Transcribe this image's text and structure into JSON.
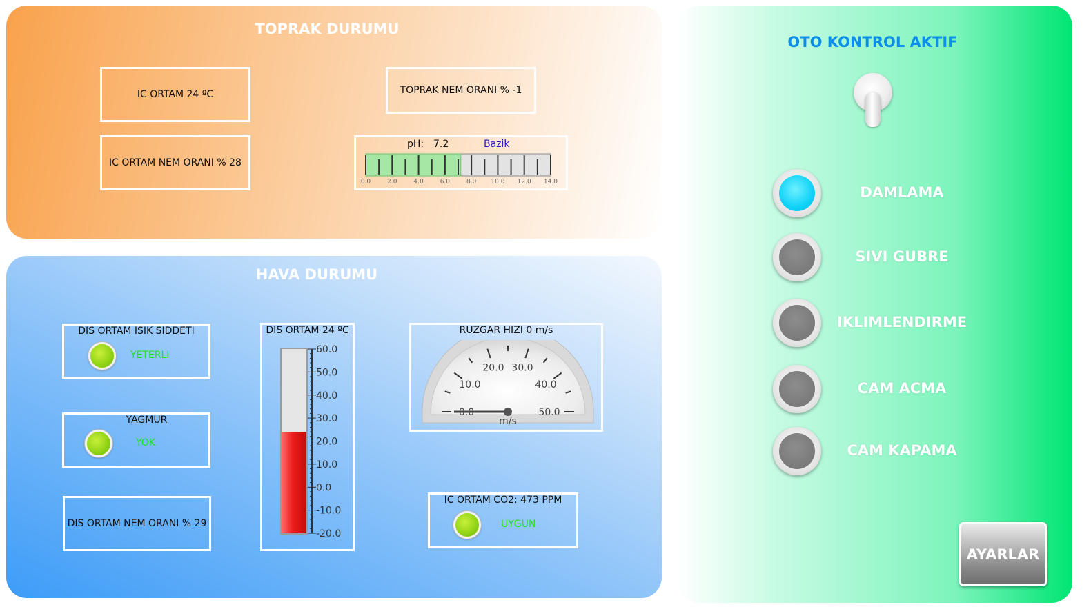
{
  "soil": {
    "title": "TOPRAK DURUMU",
    "indoor_temp": "IC ORTAM 24 ºC",
    "indoor_humidity": "IC ORTAM NEM ORANI % 28",
    "soil_moisture": "TOPRAK NEM ORANI % -1",
    "ph_label": "pH:",
    "ph_value": "7.2",
    "ph_status": "Bazik",
    "ph_scale": {
      "min": 0,
      "max": 14,
      "value": 7.2,
      "ticks": [
        "0.0",
        "2.0",
        "4.0",
        "6.0",
        "8.0",
        "10.0",
        "12.0",
        "14.0"
      ]
    }
  },
  "air": {
    "title": "HAVA DURUMU",
    "light_title": "DIS ORTAM ISIK SIDDETI",
    "light_status": "YETERLI",
    "rain_title": "YAGMUR",
    "rain_status": "YOK",
    "outdoor_humidity": "DIS ORTAM NEM ORANI % 29",
    "thermo": {
      "title": "DIS ORTAM 24 ºC",
      "min": -20,
      "max": 60,
      "value": 24,
      "ticks": [
        "60.0",
        "50.0",
        "40.0",
        "30.0",
        "20.0",
        "10.0",
        "0.0",
        "-10.0",
        "-20.0"
      ]
    },
    "wind": {
      "title": "RUZGAR HIZI 0 m/s",
      "min": 0,
      "max": 50,
      "value": 0,
      "unit": "m/s",
      "ticks": [
        "0.0",
        "10.0",
        "20.0",
        "30.0",
        "40.0",
        "50.0"
      ]
    },
    "co2_title": "IC ORTAM CO2: 473 PPM",
    "co2_status": "UYGUN"
  },
  "control": {
    "title": "OTO KONTROL AKTIF",
    "items": [
      {
        "label": "DAMLAMA",
        "active": true
      },
      {
        "label": "SIVI GUBRE",
        "active": false
      },
      {
        "label": "IKLIMLENDIRME",
        "active": false
      },
      {
        "label": "CAM ACMA",
        "active": false
      },
      {
        "label": "CAM KAPAMA",
        "active": false
      }
    ],
    "settings_label": "AYARLAR"
  },
  "colors": {
    "title_blue": "#0b8fe8",
    "ph_status": "#2a18c9",
    "led_green": "#8fd313",
    "status_text_green": "#1ee21e",
    "active_indicator": "#10d2f7",
    "thermo_fill": "#ee1c1c"
  }
}
